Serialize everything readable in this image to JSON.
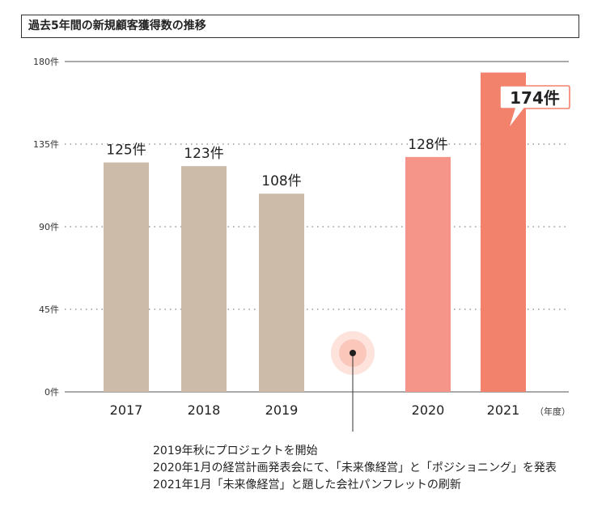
{
  "title": "過去5年間の新規顧客獲得数の推移",
  "chart_data": {
    "type": "bar",
    "categories": [
      "2017",
      "2018",
      "2019",
      "",
      "2020",
      "2021"
    ],
    "values": [
      125,
      123,
      108,
      null,
      128,
      174
    ],
    "data_labels": [
      "125件",
      "123件",
      "108件",
      "",
      "128件",
      "174件"
    ],
    "highlight_label": "174件",
    "y_ticks": [
      "0件",
      "45件",
      "90件",
      "135件",
      "180件"
    ],
    "y_tick_values": [
      0,
      45,
      90,
      135,
      180
    ],
    "ylim": [
      0,
      180
    ],
    "x_unit_label": "（年度）",
    "grid": "dotted horizontal",
    "colors": {
      "before": "#cbbba8",
      "after_2020": "#f5958a",
      "after_2021": "#f3826d",
      "marker_outer": "#fde3dc",
      "marker_inner": "#fbc7ba",
      "callout_border": "#f3826d"
    }
  },
  "notes": [
    "2019年秋にプロジェクトを開始",
    "2020年1月の経営計画発表会にて、「未来像経営」と「ポジショニング」を発表",
    "2021年1月「未来像経営」と題した会社パンフレットの刷新"
  ]
}
